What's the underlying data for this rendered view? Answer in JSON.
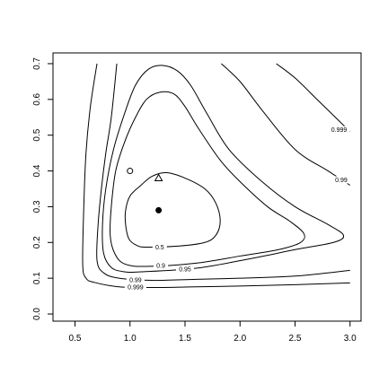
{
  "chart_data": {
    "type": "contour",
    "title": "",
    "xlabel": "",
    "ylabel": "",
    "xlim": [
      0.3,
      3.1
    ],
    "ylim": [
      -0.02,
      0.73
    ],
    "x_ticks": [
      "0.5",
      "1.0",
      "1.5",
      "2.0",
      "2.5",
      "3.0"
    ],
    "x_tick_values": [
      0.5,
      1.0,
      1.5,
      2.0,
      2.5,
      3.0
    ],
    "y_ticks": [
      "0.0",
      "0.1",
      "0.2",
      "0.3",
      "0.4",
      "0.5",
      "0.6",
      "0.7"
    ],
    "y_tick_values": [
      0.0,
      0.1,
      0.2,
      0.3,
      0.4,
      0.5,
      0.6,
      0.7
    ],
    "grid": false,
    "legend": "none",
    "contours": [
      {
        "level": "0.5",
        "closed": true,
        "points": [
          [
            1.15,
            0.187
          ],
          [
            1.45,
            0.19
          ],
          [
            1.68,
            0.2
          ],
          [
            1.78,
            0.22
          ],
          [
            1.82,
            0.26
          ],
          [
            1.78,
            0.31
          ],
          [
            1.68,
            0.35
          ],
          [
            1.5,
            0.38
          ],
          [
            1.33,
            0.395
          ],
          [
            1.2,
            0.385
          ],
          [
            1.1,
            0.36
          ],
          [
            1.0,
            0.33
          ],
          [
            0.96,
            0.29
          ],
          [
            0.96,
            0.25
          ],
          [
            0.99,
            0.21
          ],
          [
            1.06,
            0.192
          ]
        ],
        "label_at": [
          1.27,
          0.187
        ]
      },
      {
        "level": "0.9",
        "closed": true,
        "points": [
          [
            1.15,
            0.133
          ],
          [
            1.6,
            0.142
          ],
          [
            2.0,
            0.162
          ],
          [
            2.35,
            0.18
          ],
          [
            2.55,
            0.2
          ],
          [
            2.58,
            0.225
          ],
          [
            2.45,
            0.26
          ],
          [
            2.25,
            0.3
          ],
          [
            2.0,
            0.37
          ],
          [
            1.82,
            0.43
          ],
          [
            1.62,
            0.52
          ],
          [
            1.5,
            0.58
          ],
          [
            1.4,
            0.615
          ],
          [
            1.27,
            0.62
          ],
          [
            1.15,
            0.6
          ],
          [
            1.05,
            0.55
          ],
          [
            0.95,
            0.48
          ],
          [
            0.87,
            0.4
          ],
          [
            0.83,
            0.3
          ],
          [
            0.82,
            0.22
          ],
          [
            0.86,
            0.17
          ],
          [
            0.95,
            0.14
          ]
        ],
        "label_at": [
          1.28,
          0.135
        ]
      },
      {
        "level": "0.95",
        "closed": true,
        "points": [
          [
            1.1,
            0.118
          ],
          [
            1.6,
            0.128
          ],
          [
            2.1,
            0.155
          ],
          [
            2.5,
            0.18
          ],
          [
            2.85,
            0.2
          ],
          [
            2.94,
            0.22
          ],
          [
            2.8,
            0.25
          ],
          [
            2.5,
            0.3
          ],
          [
            2.2,
            0.37
          ],
          [
            1.9,
            0.46
          ],
          [
            1.7,
            0.56
          ],
          [
            1.55,
            0.64
          ],
          [
            1.43,
            0.68
          ],
          [
            1.3,
            0.695
          ],
          [
            1.17,
            0.685
          ],
          [
            1.05,
            0.64
          ],
          [
            0.95,
            0.56
          ],
          [
            0.85,
            0.46
          ],
          [
            0.78,
            0.35
          ],
          [
            0.75,
            0.25
          ],
          [
            0.76,
            0.17
          ],
          [
            0.83,
            0.13
          ],
          [
            0.95,
            0.118
          ]
        ],
        "label_at": [
          1.5,
          0.125
        ]
      },
      {
        "level": "0.99",
        "closed": false,
        "points": [
          [
            3.0,
            0.122
          ],
          [
            2.5,
            0.106
          ],
          [
            2.0,
            0.1
          ],
          [
            1.6,
            0.097
          ],
          [
            1.2,
            0.094
          ],
          [
            0.9,
            0.1
          ],
          [
            0.76,
            0.115
          ],
          [
            0.7,
            0.15
          ],
          [
            0.71,
            0.25
          ],
          [
            0.74,
            0.35
          ],
          [
            0.78,
            0.45
          ],
          [
            0.83,
            0.55
          ],
          [
            0.88,
            0.7
          ]
        ],
        "label_at": [
          1.05,
          0.096
        ]
      },
      {
        "level": "0.999",
        "closed": false,
        "points": [
          [
            3.0,
            0.087
          ],
          [
            2.5,
            0.082
          ],
          [
            2.0,
            0.078
          ],
          [
            1.6,
            0.076
          ],
          [
            1.2,
            0.074
          ],
          [
            0.9,
            0.076
          ],
          [
            0.68,
            0.088
          ],
          [
            0.6,
            0.1
          ],
          [
            0.57,
            0.14
          ],
          [
            0.58,
            0.3
          ],
          [
            0.6,
            0.45
          ],
          [
            0.64,
            0.58
          ],
          [
            0.7,
            0.7
          ]
        ],
        "label_at": [
          1.05,
          0.075
        ]
      },
      {
        "level": "0.99",
        "closed": false,
        "points": [
          [
            1.83,
            0.7
          ],
          [
            2.0,
            0.65
          ],
          [
            2.2,
            0.57
          ],
          [
            2.5,
            0.46
          ],
          [
            2.8,
            0.4
          ],
          [
            3.0,
            0.36
          ]
        ],
        "label_at": [
          2.92,
          0.375
        ]
      },
      {
        "level": "0.999",
        "closed": false,
        "points": [
          [
            2.33,
            0.7
          ],
          [
            2.5,
            0.66
          ],
          [
            2.7,
            0.6
          ],
          [
            2.9,
            0.54
          ],
          [
            3.0,
            0.51
          ]
        ],
        "label_at": [
          2.9,
          0.515
        ]
      }
    ],
    "markers": [
      {
        "name": "open-circle-point",
        "shape": "open-circle",
        "x": 1.0,
        "y": 0.4
      },
      {
        "name": "open-triangle-point",
        "shape": "open-triangle",
        "x": 1.26,
        "y": 0.38
      },
      {
        "name": "filled-circle-point",
        "shape": "filled-circle",
        "x": 1.26,
        "y": 0.29
      }
    ]
  }
}
